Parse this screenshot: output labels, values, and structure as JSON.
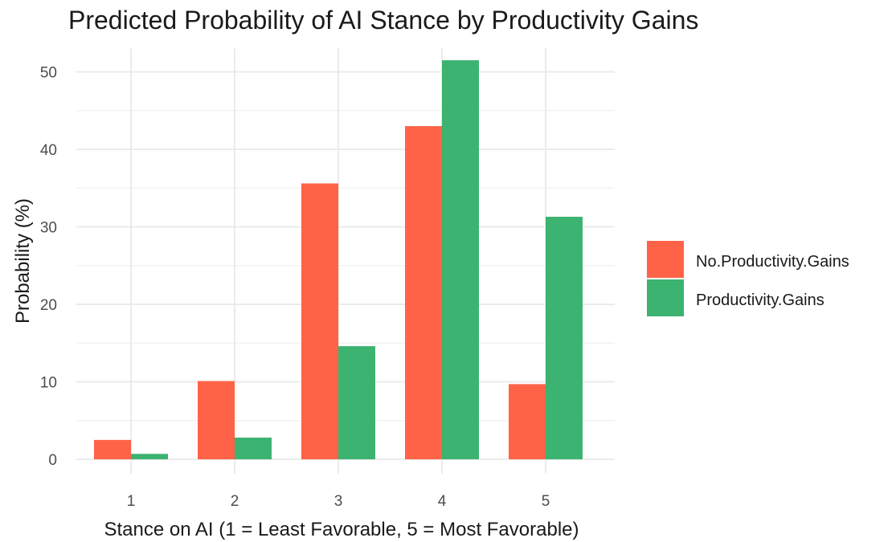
{
  "chart_data": {
    "type": "bar",
    "title": "Predicted Probability of AI Stance by Productivity Gains",
    "xlabel": "Stance on AI (1 = Least Favorable, 5 = Most Favorable)",
    "ylabel": "Probability (%)",
    "categories": [
      "1",
      "2",
      "3",
      "4",
      "5"
    ],
    "series": [
      {
        "name": "No.Productivity.Gains",
        "color": "#FF6347",
        "values": [
          2.5,
          10.1,
          35.6,
          43.0,
          9.7
        ]
      },
      {
        "name": "Productivity.Gains",
        "color": "#3CB371",
        "values": [
          0.7,
          2.8,
          14.6,
          51.5,
          31.3
        ]
      }
    ],
    "ylim": [
      0,
      53
    ],
    "yticks": [
      0,
      10,
      20,
      30,
      40,
      50
    ],
    "grid": true,
    "legend_position": "right"
  }
}
